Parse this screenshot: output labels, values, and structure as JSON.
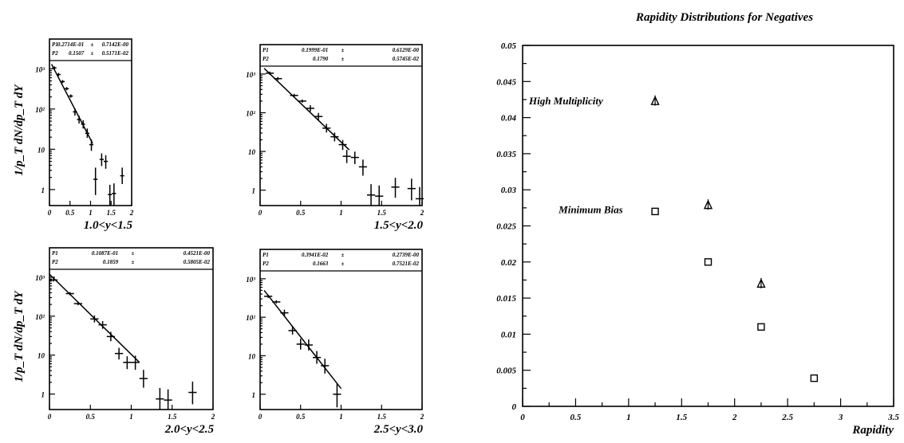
{
  "chart_data": [
    {
      "type": "scatter",
      "panel": "pt-1",
      "title": "1.0<y<1.5",
      "ylabel": "1/p_T dN/dp_T dY",
      "log_y": true,
      "xlim": [
        0,
        2
      ],
      "ylim": [
        0.4,
        1600
      ],
      "xticks": [
        0,
        0.5,
        1,
        1.5,
        2
      ],
      "xtick_labels": [
        "0",
        "0.5",
        "1",
        "1.5",
        "2"
      ],
      "yticks": [
        1,
        10,
        100,
        1000
      ],
      "ytick_labels": [
        "1",
        "10",
        "10²",
        "10³"
      ],
      "stats": [
        {
          "name": "P1",
          "value": "0.2714E-01",
          "pm": "±",
          "error": "0.7142E-00"
        },
        {
          "name": "P2",
          "value": "0.1507",
          "pm": "±",
          "error": "0.5171E-02"
        }
      ],
      "fit": {
        "x": [
          0.05,
          1.05
        ],
        "y": [
          1300,
          14
        ]
      },
      "points": [
        {
          "x": 0.12,
          "y": 1050,
          "xerr": 0.05,
          "ylo": 1050,
          "yhi": 1050
        },
        {
          "x": 0.22,
          "y": 720,
          "xerr": 0.05,
          "ylo": 720,
          "yhi": 720
        },
        {
          "x": 0.32,
          "y": 480,
          "xerr": 0.05,
          "ylo": 480,
          "yhi": 480
        },
        {
          "x": 0.42,
          "y": 320,
          "xerr": 0.05,
          "ylo": 320,
          "yhi": 320
        },
        {
          "x": 0.52,
          "y": 210,
          "xerr": 0.05,
          "ylo": 210,
          "yhi": 210
        },
        {
          "x": 0.62,
          "y": 85,
          "xerr": 0.05,
          "ylo": 75,
          "yhi": 95
        },
        {
          "x": 0.72,
          "y": 55,
          "xerr": 0.05,
          "ylo": 48,
          "yhi": 62
        },
        {
          "x": 0.82,
          "y": 42,
          "xerr": 0.05,
          "ylo": 36,
          "yhi": 48
        },
        {
          "x": 0.92,
          "y": 25,
          "xerr": 0.05,
          "ylo": 21,
          "yhi": 30
        },
        {
          "x": 1.02,
          "y": 13,
          "xerr": 0.05,
          "ylo": 10,
          "yhi": 16
        },
        {
          "x": 1.12,
          "y": 1.8,
          "xerr": 0.05,
          "ylo": 0.8,
          "yhi": 3.2
        },
        {
          "x": 1.27,
          "y": 5.6,
          "xerr": 0.05,
          "ylo": 4.2,
          "yhi": 7.2
        },
        {
          "x": 1.37,
          "y": 5.0,
          "xerr": 0.05,
          "ylo": 3.6,
          "yhi": 6.5
        },
        {
          "x": 1.47,
          "y": 0.75,
          "xerr": 0.05,
          "ylo": 0.45,
          "yhi": 1.2
        },
        {
          "x": 1.57,
          "y": 0.8,
          "xerr": 0.05,
          "ylo": 0.45,
          "yhi": 1.3
        },
        {
          "x": 1.77,
          "y": 2.2,
          "xerr": 0.05,
          "ylo": 1.5,
          "yhi": 3.2
        }
      ]
    },
    {
      "type": "scatter",
      "panel": "pt-2",
      "title": "1.5<y<2.0",
      "ylabel": "",
      "log_y": true,
      "xlim": [
        0,
        2
      ],
      "ylim": [
        0.4,
        1600
      ],
      "xticks": [
        0,
        0.5,
        1,
        1.5,
        2
      ],
      "xtick_labels": [
        "0",
        "0.5",
        "1",
        "1.5",
        "2"
      ],
      "yticks": [
        1,
        10,
        100,
        1000
      ],
      "ytick_labels": [
        "1",
        "10",
        "10²",
        "10³"
      ],
      "stats": [
        {
          "name": "P1",
          "value": "0.1999E-01",
          "pm": "±",
          "error": "0.6129E-00"
        },
        {
          "name": "P2",
          "value": "0.1790",
          "pm": "±",
          "error": "0.5745E-02"
        }
      ],
      "fit": {
        "x": [
          0.05,
          1.1
        ],
        "y": [
          1400,
          11
        ]
      },
      "points": [
        {
          "x": 0.12,
          "y": 1050,
          "xerr": 0.05,
          "ylo": 1050,
          "yhi": 1050
        },
        {
          "x": 0.22,
          "y": 760,
          "xerr": 0.05,
          "ylo": 760,
          "yhi": 760
        },
        {
          "x": 0.42,
          "y": 280,
          "xerr": 0.05,
          "ylo": 280,
          "yhi": 280
        },
        {
          "x": 0.52,
          "y": 200,
          "xerr": 0.05,
          "ylo": 200,
          "yhi": 200
        },
        {
          "x": 0.62,
          "y": 130,
          "xerr": 0.05,
          "ylo": 118,
          "yhi": 142
        },
        {
          "x": 0.72,
          "y": 80,
          "xerr": 0.05,
          "ylo": 70,
          "yhi": 90
        },
        {
          "x": 0.82,
          "y": 40,
          "xerr": 0.05,
          "ylo": 34,
          "yhi": 47
        },
        {
          "x": 0.92,
          "y": 24,
          "xerr": 0.05,
          "ylo": 20,
          "yhi": 28
        },
        {
          "x": 1.02,
          "y": 15,
          "xerr": 0.05,
          "ylo": 12,
          "yhi": 18
        },
        {
          "x": 1.07,
          "y": 7.5,
          "xerr": 0.05,
          "ylo": 5.5,
          "yhi": 10
        },
        {
          "x": 1.17,
          "y": 7,
          "xerr": 0.05,
          "ylo": 5.2,
          "yhi": 9
        },
        {
          "x": 1.27,
          "y": 4,
          "xerr": 0.05,
          "ylo": 2.6,
          "yhi": 5.6
        },
        {
          "x": 1.37,
          "y": 0.75,
          "xerr": 0.05,
          "ylo": 0.45,
          "yhi": 1.3
        },
        {
          "x": 1.47,
          "y": 0.7,
          "xerr": 0.05,
          "ylo": 0.45,
          "yhi": 1.2
        },
        {
          "x": 1.67,
          "y": 1.2,
          "xerr": 0.05,
          "ylo": 0.7,
          "yhi": 1.9
        },
        {
          "x": 1.87,
          "y": 1.1,
          "xerr": 0.05,
          "ylo": 0.6,
          "yhi": 1.8
        },
        {
          "x": 1.97,
          "y": 0.6,
          "xerr": 0.05,
          "ylo": 0.42,
          "yhi": 1.1
        }
      ]
    },
    {
      "type": "scatter",
      "panel": "pt-3",
      "title": "2.0<y<2.5",
      "ylabel": "1/p_T dN/dp_T dY",
      "log_y": true,
      "xlim": [
        0,
        2
      ],
      "ylim": [
        0.4,
        1600
      ],
      "xticks": [
        0,
        0.5,
        1,
        1.5,
        2
      ],
      "xtick_labels": [
        "0",
        "0.5",
        "1",
        "1.5",
        "2"
      ],
      "yticks": [
        1,
        10,
        100,
        1000
      ],
      "ytick_labels": [
        "1",
        "10",
        "10²",
        "10³"
      ],
      "stats": [
        {
          "name": "P1",
          "value": "0.1087E-01",
          "pm": "±",
          "error": "0.4521E-00"
        },
        {
          "name": "P2",
          "value": "0.1859",
          "pm": "±",
          "error": "0.5805E-02"
        }
      ],
      "fit": {
        "x": [
          0.0,
          1.1
        ],
        "y": [
          1200,
          6.5
        ]
      },
      "points": [
        {
          "x": 0.05,
          "y": 850,
          "xerr": 0.05,
          "ylo": 850,
          "yhi": 850
        },
        {
          "x": 0.25,
          "y": 380,
          "xerr": 0.05,
          "ylo": 380,
          "yhi": 380
        },
        {
          "x": 0.35,
          "y": 210,
          "xerr": 0.05,
          "ylo": 210,
          "yhi": 210
        },
        {
          "x": 0.55,
          "y": 85,
          "xerr": 0.05,
          "ylo": 76,
          "yhi": 95
        },
        {
          "x": 0.65,
          "y": 60,
          "xerr": 0.05,
          "ylo": 52,
          "yhi": 68
        },
        {
          "x": 0.75,
          "y": 30,
          "xerr": 0.05,
          "ylo": 25,
          "yhi": 36
        },
        {
          "x": 0.85,
          "y": 11,
          "xerr": 0.05,
          "ylo": 8.5,
          "yhi": 14
        },
        {
          "x": 0.95,
          "y": 6.5,
          "xerr": 0.05,
          "ylo": 4.8,
          "yhi": 8.5
        },
        {
          "x": 1.05,
          "y": 6.5,
          "xerr": 0.05,
          "ylo": 4.6,
          "yhi": 8.8
        },
        {
          "x": 1.15,
          "y": 2.5,
          "xerr": 0.05,
          "ylo": 1.6,
          "yhi": 3.8
        },
        {
          "x": 1.35,
          "y": 0.75,
          "xerr": 0.05,
          "ylo": 0.45,
          "yhi": 1.3
        },
        {
          "x": 1.45,
          "y": 0.7,
          "xerr": 0.05,
          "ylo": 0.45,
          "yhi": 1.2
        },
        {
          "x": 1.75,
          "y": 1.1,
          "xerr": 0.05,
          "ylo": 0.6,
          "yhi": 1.9
        }
      ]
    },
    {
      "type": "scatter",
      "panel": "pt-4",
      "title": "2.5<y<3.0",
      "ylabel": "",
      "log_y": true,
      "xlim": [
        0,
        2
      ],
      "ylim": [
        0.4,
        1600
      ],
      "xticks": [
        0,
        0.5,
        1,
        1.5,
        2
      ],
      "xtick_labels": [
        "0",
        "0.5",
        "1",
        "1.5",
        "2"
      ],
      "yticks": [
        1,
        10,
        100,
        1000
      ],
      "ytick_labels": [
        "1",
        "10",
        "10²",
        "10³"
      ],
      "stats": [
        {
          "name": "P1",
          "value": "0.3941E-02",
          "pm": "±",
          "error": "0.2739E-00"
        },
        {
          "name": "P2",
          "value": "0.1663",
          "pm": "±",
          "error": "0.7521E-02"
        }
      ],
      "fit": {
        "x": [
          0.05,
          1.0
        ],
        "y": [
          500,
          1.4
        ]
      },
      "points": [
        {
          "x": 0.1,
          "y": 350,
          "xerr": 0.05,
          "ylo": 350,
          "yhi": 350
        },
        {
          "x": 0.2,
          "y": 250,
          "xerr": 0.05,
          "ylo": 250,
          "yhi": 250
        },
        {
          "x": 0.3,
          "y": 130,
          "xerr": 0.05,
          "ylo": 118,
          "yhi": 143
        },
        {
          "x": 0.4,
          "y": 45,
          "xerr": 0.05,
          "ylo": 39,
          "yhi": 52
        },
        {
          "x": 0.5,
          "y": 20,
          "xerr": 0.05,
          "ylo": 16,
          "yhi": 25
        },
        {
          "x": 0.6,
          "y": 19,
          "xerr": 0.05,
          "ylo": 15,
          "yhi": 24
        },
        {
          "x": 0.7,
          "y": 9,
          "xerr": 0.05,
          "ylo": 6.8,
          "yhi": 12
        },
        {
          "x": 0.8,
          "y": 5.5,
          "xerr": 0.05,
          "ylo": 3.8,
          "yhi": 7.6
        },
        {
          "x": 0.95,
          "y": 1,
          "xerr": 0.05,
          "ylo": 0.5,
          "yhi": 1.7
        }
      ]
    },
    {
      "type": "scatter",
      "panel": "rapidity",
      "title": "Rapidity Distributions for Negatives",
      "xlabel": "Rapidity",
      "ylabel": "",
      "xlim": [
        0,
        3.5
      ],
      "ylim": [
        0,
        0.05
      ],
      "xticks": [
        0,
        0.5,
        1,
        1.5,
        2,
        2.5,
        3,
        3.5
      ],
      "xtick_labels": [
        "0",
        "0.5",
        "1",
        "1.5",
        "2",
        "2.5",
        "3",
        "3.5"
      ],
      "yticks": [
        0,
        0.005,
        0.01,
        0.015,
        0.02,
        0.025,
        0.03,
        0.035,
        0.04,
        0.045,
        0.05
      ],
      "ytick_labels": [
        "0",
        "0.005",
        "0.01",
        "0.015",
        "0.02",
        "0.025",
        "0.03",
        "0.035",
        "0.04",
        "0.045",
        "0.05"
      ],
      "annotations": [
        {
          "text": "High Multiplicity",
          "x": 0.06,
          "y": 0.0423
        },
        {
          "text": "Minimum Bias",
          "x": 0.34,
          "y": 0.0272
        }
      ],
      "series": [
        {
          "marker": "triangle",
          "x": [
            1.25,
            1.75,
            2.25
          ],
          "y": [
            0.0422,
            0.0278,
            0.0169
          ]
        },
        {
          "marker": "square",
          "x": [
            1.25,
            1.75,
            2.25,
            2.75
          ],
          "y": [
            0.027,
            0.02,
            0.011,
            0.0039
          ]
        }
      ]
    }
  ]
}
